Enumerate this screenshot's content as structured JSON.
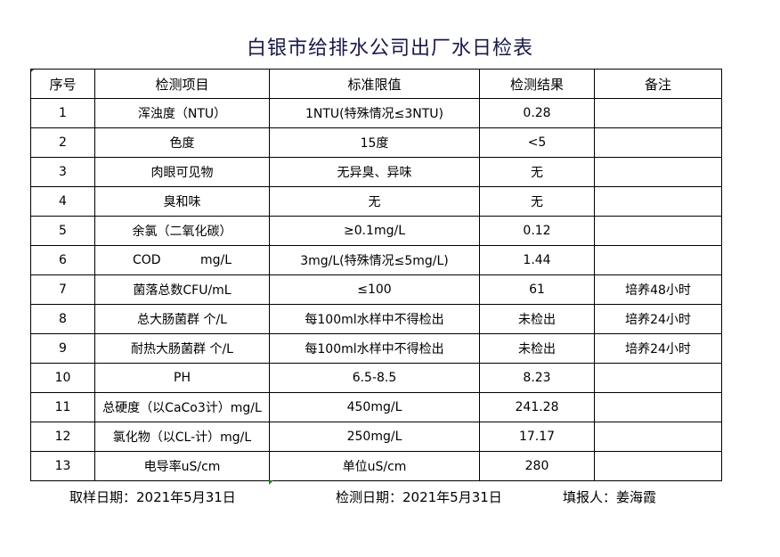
{
  "title": "白银市给排水公司出厂水日检表",
  "headers": [
    "序号",
    "检测项目",
    "标准限值",
    "检测结果",
    "备注"
  ],
  "rows": [
    [
      "1",
      "浑浊度（NTU）",
      "1NTU(特殊情况≤3NTU)",
      "0.28",
      ""
    ],
    [
      "2",
      "色度",
      "15度",
      "<5",
      ""
    ],
    [
      "3",
      "肉眼可见物",
      "无异臭、异味",
      "无",
      ""
    ],
    [
      "4",
      "臭和味",
      "无",
      "无",
      ""
    ],
    [
      "5",
      "余氯（二氧化碳）",
      "≥0.1mg/L",
      "0.12",
      ""
    ],
    [
      "6",
      "COD          mg/L",
      "3mg/L(特殊情况≤5mg/L)",
      "1.44",
      ""
    ],
    [
      "7",
      "菌落总数CFU/mL",
      "≤100",
      "61",
      "培养48小时"
    ],
    [
      "8",
      "总大肠菌群 个/L",
      "每100ml水样中不得检出",
      "未检出",
      "培养24小时"
    ],
    [
      "9",
      "耐热大肠菌群 个/L",
      "每100ml水样中不得检出",
      "未检出",
      "培养24小时"
    ],
    [
      "10",
      "PH",
      "6.5-8.5",
      "8.23",
      ""
    ],
    [
      "11",
      "总硬度（以CaCo3计）mg/L",
      "450mg/L",
      "241.28",
      ""
    ],
    [
      "12",
      "氯化物（以CL-计）mg/L",
      "250mg/L",
      "17.17",
      ""
    ],
    [
      "13",
      "电导率uS/cm",
      "单位uS/cm",
      "280",
      ""
    ]
  ],
  "footer": {
    "sample_date": "取样日期：2021年5月31日",
    "test_date": "检测日期：2021年5月31日",
    "reporter": "填报人：姜海霞"
  }
}
